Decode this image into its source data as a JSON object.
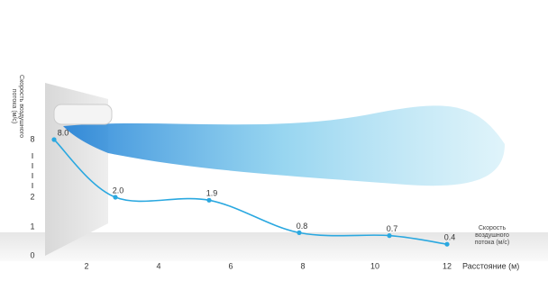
{
  "chart_data": {
    "type": "line",
    "y_label": "Скорость воздушного потока (м/с)",
    "x_label": "Расстояние (м)",
    "x": [
      1.1,
      2.8,
      5.4,
      7.9,
      10.4,
      12.0
    ],
    "series": [
      {
        "name": "Скорость воздушного потока (м/с)",
        "color": "#2aa8e0",
        "values": [
          8,
          2,
          1.9,
          0.8,
          0.7,
          0.4
        ],
        "value_labels": [
          "8.0",
          "2.0",
          "1.9",
          "0.8",
          "0.7",
          "0.4"
        ]
      }
    ],
    "xlim": [
      -0.4,
      14.8
    ],
    "xticks": [
      2,
      4,
      6,
      8,
      10,
      12
    ],
    "ylim": [
      0,
      8
    ],
    "yticks": [
      0,
      1,
      2,
      8
    ]
  }
}
